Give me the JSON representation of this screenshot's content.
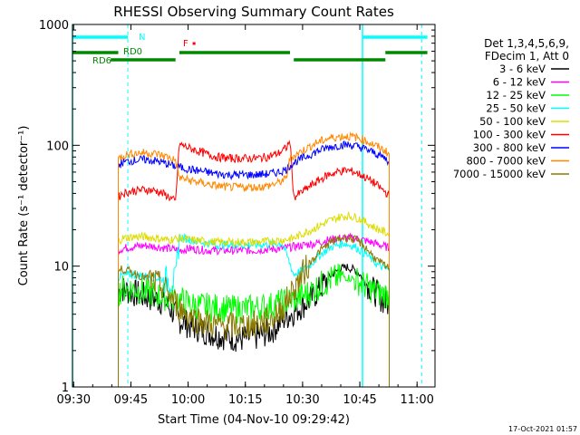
{
  "chart_data": {
    "type": "line",
    "title": "RHESSI Observing Summary Count Rates",
    "xlabel": "Start Time (04-Nov-10 09:29:42)",
    "ylabel": "Count Rate (s⁻¹ detector⁻¹)",
    "x_ticks": [
      "09:30",
      "09:45",
      "10:00",
      "10:15",
      "10:30",
      "10:45",
      "11:00"
    ],
    "y_ticks": [
      "1",
      "10",
      "100",
      "1000"
    ],
    "y_scale": "log",
    "ylim": [
      1,
      1000
    ],
    "xlim_minutes": [
      0,
      95
    ],
    "legend_header": [
      "Det 1,3,4,5,6,9,",
      "FDecim 1, Att 0"
    ],
    "legend_position": "right",
    "series": [
      {
        "name": "3 - 6 keV",
        "color": "#000000",
        "x": [
          12,
          13,
          16,
          20,
          24,
          28,
          31,
          35,
          38,
          41,
          44,
          48,
          52,
          55,
          58,
          62,
          65,
          67,
          70,
          72,
          74,
          75,
          77,
          80,
          82,
          83
        ],
        "y": [
          6.2,
          6.5,
          6,
          5.5,
          5.1,
          3.6,
          3.2,
          2.9,
          2.7,
          2.6,
          2.5,
          2.6,
          2.9,
          3.6,
          4.2,
          5.2,
          6.5,
          8,
          9.5,
          9.8,
          9.3,
          8.8,
          7.2,
          5.8,
          5,
          4.8
        ]
      },
      {
        "name": "6 - 12 keV",
        "color": "#ff00ff",
        "x": [
          12,
          13,
          16,
          19,
          22,
          25,
          28,
          31,
          35,
          38,
          41,
          44,
          48,
          51,
          55,
          58,
          61,
          64,
          67,
          70,
          72,
          74,
          76,
          79,
          82,
          83
        ],
        "y": [
          13.5,
          14,
          14.5,
          14.8,
          14.5,
          14,
          13.5,
          14,
          13.5,
          13.5,
          13.5,
          13.5,
          13.5,
          13.8,
          14,
          14.5,
          15,
          15.5,
          16.5,
          17,
          17.2,
          17,
          16.5,
          15.5,
          14.5,
          14
        ]
      },
      {
        "name": "12 - 25 keV",
        "color": "#00ff00",
        "x": [
          12,
          13,
          16,
          20,
          24,
          28,
          31,
          35,
          38,
          41,
          44,
          48,
          52,
          55,
          58,
          62,
          65,
          68,
          71,
          74,
          77,
          80,
          83
        ],
        "y": [
          6,
          6.5,
          6.5,
          6,
          5.6,
          5.3,
          4.8,
          4.6,
          4.5,
          4.4,
          4.4,
          4.5,
          4.7,
          5,
          5.3,
          6,
          7,
          7.8,
          8.2,
          7.8,
          6.8,
          6,
          5.8
        ]
      },
      {
        "name": "25 - 50 keV",
        "color": "#00ffff",
        "x": [
          12,
          13,
          16,
          20,
          24,
          27,
          28,
          31,
          35,
          38,
          41,
          44,
          48,
          52,
          55,
          58,
          62,
          65,
          68,
          71,
          74,
          77,
          80,
          83
        ],
        "y": [
          8,
          8.4,
          8.5,
          8.2,
          7.8,
          7.5,
          17.5,
          16.5,
          15.5,
          15,
          15,
          15,
          15,
          15.2,
          15.5,
          8.5,
          10,
          12.5,
          14.5,
          15.5,
          14.5,
          12.5,
          10.2,
          9.2
        ]
      },
      {
        "name": "50 - 100 keV",
        "color": "#dddd00",
        "x": [
          12,
          13,
          16,
          19,
          22,
          25,
          28,
          31,
          35,
          38,
          41,
          44,
          48,
          51,
          55,
          58,
          61,
          64,
          67,
          70,
          72,
          74,
          76,
          79,
          82,
          83
        ],
        "y": [
          16,
          17,
          17.5,
          17.5,
          17,
          16.5,
          17,
          16.5,
          16,
          15.8,
          15.8,
          15.8,
          15.8,
          16,
          16.5,
          17,
          19,
          21,
          23.5,
          25.5,
          26,
          25.5,
          24,
          21,
          19,
          18
        ]
      },
      {
        "name": "100 - 300 keV",
        "color": "#ff0000",
        "x": [
          12,
          13,
          16,
          19,
          22,
          25,
          27,
          28,
          31,
          35,
          38,
          41,
          44,
          48,
          51,
          54,
          56,
          57,
          58,
          61,
          64,
          67,
          70,
          72,
          74,
          76,
          79,
          82,
          83
        ],
        "y": [
          37,
          40,
          42,
          43,
          42,
          38,
          34,
          102,
          94,
          85,
          80,
          78,
          78,
          78,
          80,
          86,
          95,
          108,
          37,
          43,
          50,
          57,
          61,
          62,
          60,
          56,
          49,
          41,
          38
        ]
      },
      {
        "name": "300 - 800 keV",
        "color": "#0000ff",
        "x": [
          12,
          13,
          16,
          19,
          22,
          25,
          27,
          28,
          31,
          35,
          38,
          41,
          44,
          48,
          51,
          54,
          56,
          57,
          58,
          61,
          64,
          67,
          70,
          72,
          74,
          76,
          79,
          82,
          83
        ],
        "y": [
          68,
          72,
          75,
          76,
          74,
          70,
          67,
          66,
          63,
          60,
          58,
          57,
          57,
          57,
          58,
          60,
          63,
          68,
          72,
          80,
          89,
          96,
          100,
          101,
          99,
          95,
          87,
          78,
          73
        ]
      },
      {
        "name": "800 - 7000 keV",
        "color": "#ff8800",
        "x": [
          12,
          13,
          16,
          19,
          22,
          25,
          27,
          28,
          31,
          35,
          38,
          41,
          44,
          48,
          51,
          54,
          56,
          57,
          58,
          61,
          64,
          67,
          70,
          72,
          74,
          76,
          79,
          82,
          83
        ],
        "y": [
          77,
          82,
          86,
          87,
          85,
          80,
          75,
          54,
          51,
          48,
          46,
          45,
          45,
          45,
          46,
          49,
          53,
          78,
          82,
          93,
          105,
          114,
          118,
          119,
          117,
          112,
          101,
          90,
          84
        ]
      },
      {
        "name": "7000 - 15000 keV",
        "color": "#8b7a00",
        "x": [
          12,
          13,
          16,
          20,
          24,
          28,
          31,
          35,
          38,
          41,
          44,
          48,
          52,
          55,
          58,
          62,
          65,
          68,
          71,
          73,
          75,
          77,
          80,
          83
        ],
        "y": [
          9,
          9.5,
          8.8,
          7.8,
          6.6,
          4.5,
          3.8,
          3.4,
          3.2,
          3.2,
          3.2,
          3.3,
          3.6,
          4.5,
          6.5,
          10.5,
          13.5,
          16,
          17.2,
          17,
          16,
          14,
          11,
          9.5
        ]
      }
    ],
    "vertical_lines": {
      "solid_minutes": [
        0,
        76
      ],
      "dashed_minutes": [
        14.5,
        91.5
      ],
      "color": "#00ffff"
    },
    "bars": {
      "night": {
        "label": "N",
        "color": "#00ffff",
        "segments": [
          [
            0,
            14.5
          ],
          [
            76,
            93
          ]
        ]
      },
      "rd0": {
        "label": "RD0",
        "color": "#008800",
        "segments": [
          [
            -2,
            12
          ],
          [
            28,
            57
          ],
          [
            82,
            93
          ]
        ]
      },
      "rd6": {
        "label": "RD6",
        "color": "#008800",
        "segments": [
          [
            10,
            27
          ],
          [
            58,
            82
          ]
        ]
      },
      "flare": {
        "label": "F",
        "color": "#ff0000",
        "segments": [
          [
            31.5,
            32
          ]
        ]
      }
    },
    "grid": false
  },
  "footer": {
    "timestamp": "17-Oct-2021 01:57"
  }
}
